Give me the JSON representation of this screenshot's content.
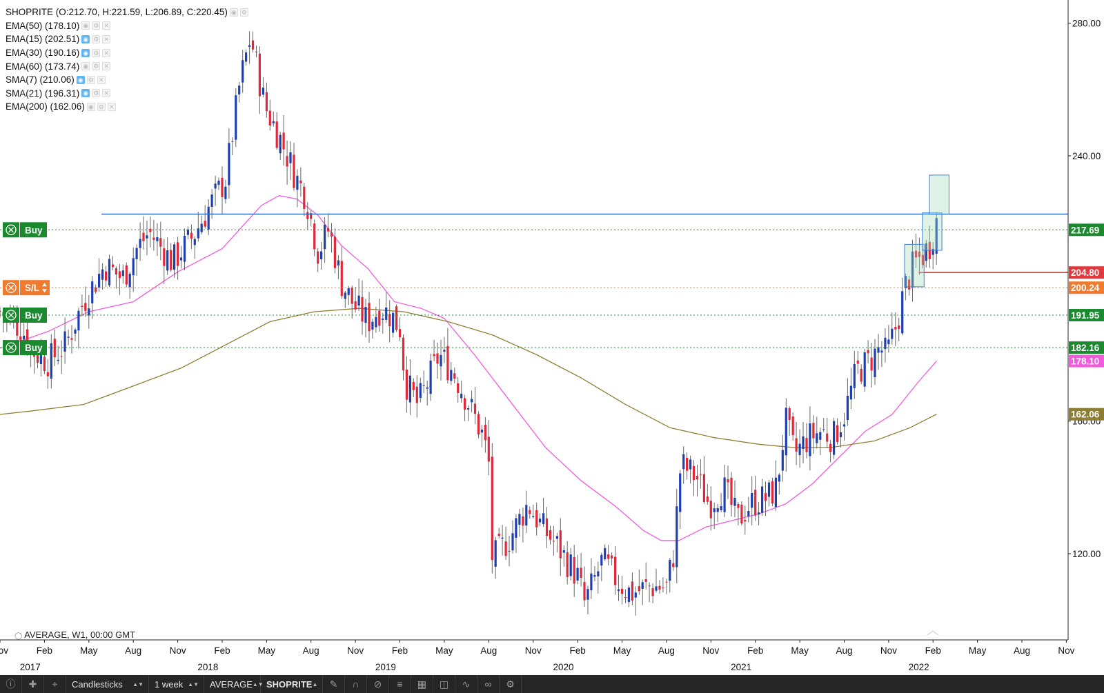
{
  "legend": [
    {
      "text": "SHOPRITE (O:212.70, H:221.59, L:206.89, C:220.45)",
      "active": false,
      "buttons": 2
    },
    {
      "text": "EMA(50) (178.10)",
      "active": false,
      "buttons": 3
    },
    {
      "text": "EMA(15) (202.51)",
      "active": true,
      "buttons": 3
    },
    {
      "text": "EMA(30) (190.16)",
      "active": true,
      "buttons": 3
    },
    {
      "text": "EMA(60) (173.74)",
      "active": false,
      "buttons": 3
    },
    {
      "text": "SMA(7) (210.06)",
      "active": true,
      "buttons": 3
    },
    {
      "text": "SMA(21) (196.31)",
      "active": true,
      "buttons": 3
    },
    {
      "text": "EMA(200) (162.06)",
      "active": false,
      "buttons": 3
    }
  ],
  "bottom_note": "AVERAGE, W1, 00:00 GMT",
  "trade_buttons": [
    {
      "label": "Buy",
      "price": 217.69,
      "color": "#1b8a2e"
    },
    {
      "label": "S/L",
      "price": 200.24,
      "color": "#f07b2f"
    },
    {
      "label": "Buy",
      "price": 191.95,
      "color": "#1b8a2e"
    },
    {
      "label": "Buy",
      "price": 182.16,
      "color": "#1b8a2e"
    }
  ],
  "price_tags": [
    {
      "text": "217.69",
      "price": 217.69,
      "bg": "#1b8a2e"
    },
    {
      "text": "204.80",
      "price": 204.8,
      "bg": "#e0393e"
    },
    {
      "text": "200.24",
      "price": 200.24,
      "bg": "#f07b2f"
    },
    {
      "text": "191.95",
      "price": 191.95,
      "bg": "#1b8a2e"
    },
    {
      "text": "182.16",
      "price": 182.16,
      "bg": "#1b8a2e"
    },
    {
      "text": "178.10",
      "price": 178.1,
      "bg": "#f25bdc"
    },
    {
      "text": "162.06",
      "price": 162.06,
      "bg": "#8e7e34"
    }
  ],
  "horizontal_lines": [
    {
      "price": 222.43,
      "color": "#2d6fd6",
      "style": "solid"
    },
    {
      "price": 217.69,
      "color": "#1b8a2e",
      "style": "dotted"
    },
    {
      "price": 200.24,
      "color": "#f07b2f",
      "style": "dotted"
    },
    {
      "price": 191.95,
      "color": "#1b8a2e",
      "style": "dotted"
    },
    {
      "price": 182.16,
      "color": "#1b8a2e",
      "style": "dotted"
    },
    {
      "price": 204.8,
      "color": "#e0393e",
      "style": "solid",
      "from_time": 2022.0
    }
  ],
  "chart_data": {
    "type": "candlestick",
    "title": "SHOPRITE",
    "timeframe": "1 week",
    "ylim": [
      94,
      287
    ],
    "xlim": [
      2016.83,
      2022.84
    ],
    "y_ticks": [
      120,
      160,
      240,
      280
    ],
    "y_tick_labels": [
      "120.00",
      "160.00",
      "240.00",
      "280.00"
    ],
    "month_ticks": [
      {
        "t": 2016.83,
        "label": "Nov"
      },
      {
        "t": 2017.08,
        "label": "Feb"
      },
      {
        "t": 2017.33,
        "label": "May"
      },
      {
        "t": 2017.58,
        "label": "Aug"
      },
      {
        "t": 2017.83,
        "label": "Nov"
      },
      {
        "t": 2018.08,
        "label": "Feb"
      },
      {
        "t": 2018.33,
        "label": "May"
      },
      {
        "t": 2018.58,
        "label": "Aug"
      },
      {
        "t": 2018.83,
        "label": "Nov"
      },
      {
        "t": 2019.08,
        "label": "Feb"
      },
      {
        "t": 2019.33,
        "label": "May"
      },
      {
        "t": 2019.58,
        "label": "Aug"
      },
      {
        "t": 2019.83,
        "label": "Nov"
      },
      {
        "t": 2020.08,
        "label": "Feb"
      },
      {
        "t": 2020.33,
        "label": "May"
      },
      {
        "t": 2020.58,
        "label": "Aug"
      },
      {
        "t": 2020.83,
        "label": "Nov"
      },
      {
        "t": 2021.08,
        "label": "Feb"
      },
      {
        "t": 2021.33,
        "label": "May"
      },
      {
        "t": 2021.58,
        "label": "Aug"
      },
      {
        "t": 2021.83,
        "label": "Nov"
      },
      {
        "t": 2022.08,
        "label": "Feb"
      },
      {
        "t": 2022.33,
        "label": "May"
      },
      {
        "t": 2022.58,
        "label": "Aug"
      },
      {
        "t": 2022.83,
        "label": "Nov"
      }
    ],
    "year_ticks": [
      {
        "t": 2017.0,
        "label": "2017"
      },
      {
        "t": 2018.0,
        "label": "2018"
      },
      {
        "t": 2019.0,
        "label": "2019"
      },
      {
        "t": 2020.0,
        "label": "2020"
      },
      {
        "t": 2021.0,
        "label": "2021"
      },
      {
        "t": 2022.0,
        "label": "2022"
      }
    ],
    "close_anchors": [
      [
        2016.83,
        193
      ],
      [
        2016.95,
        188
      ],
      [
        2017.02,
        181
      ],
      [
        2017.1,
        178
      ],
      [
        2017.2,
        183
      ],
      [
        2017.3,
        196
      ],
      [
        2017.42,
        207
      ],
      [
        2017.52,
        203
      ],
      [
        2017.6,
        212
      ],
      [
        2017.67,
        217
      ],
      [
        2017.8,
        208
      ],
      [
        2017.92,
        216
      ],
      [
        2018.0,
        224
      ],
      [
        2018.1,
        233
      ],
      [
        2018.18,
        262
      ],
      [
        2018.24,
        276
      ],
      [
        2018.32,
        255
      ],
      [
        2018.4,
        246
      ],
      [
        2018.5,
        233
      ],
      [
        2018.55,
        228
      ],
      [
        2018.62,
        211
      ],
      [
        2018.68,
        218
      ],
      [
        2018.75,
        202
      ],
      [
        2018.82,
        195
      ],
      [
        2018.9,
        190
      ],
      [
        2018.97,
        194
      ],
      [
        2019.03,
        192
      ],
      [
        2019.08,
        188
      ],
      [
        2019.11,
        172
      ],
      [
        2019.18,
        165
      ],
      [
        2019.24,
        172
      ],
      [
        2019.3,
        180
      ],
      [
        2019.38,
        175
      ],
      [
        2019.47,
        165
      ],
      [
        2019.55,
        155
      ],
      [
        2019.58,
        147
      ],
      [
        2019.6,
        118
      ],
      [
        2019.7,
        125
      ],
      [
        2019.8,
        135
      ],
      [
        2019.88,
        128
      ],
      [
        2019.97,
        122
      ],
      [
        2020.08,
        113
      ],
      [
        2020.12,
        105
      ],
      [
        2020.22,
        118
      ],
      [
        2020.3,
        112
      ],
      [
        2020.38,
        108
      ],
      [
        2020.48,
        110
      ],
      [
        2020.55,
        110
      ],
      [
        2020.58,
        110
      ],
      [
        2020.62,
        120
      ],
      [
        2020.66,
        147
      ],
      [
        2020.75,
        143
      ],
      [
        2020.82,
        135
      ],
      [
        2020.9,
        140
      ],
      [
        2020.98,
        130
      ],
      [
        2021.05,
        135
      ],
      [
        2021.15,
        137
      ],
      [
        2021.2,
        140
      ],
      [
        2021.25,
        160
      ],
      [
        2021.3,
        150
      ],
      [
        2021.38,
        155
      ],
      [
        2021.45,
        157
      ],
      [
        2021.52,
        155
      ],
      [
        2021.58,
        162
      ],
      [
        2021.65,
        175
      ],
      [
        2021.72,
        178
      ],
      [
        2021.78,
        182
      ],
      [
        2021.82,
        180
      ],
      [
        2021.88,
        190
      ],
      [
        2021.92,
        200
      ],
      [
        2021.97,
        207
      ],
      [
        2022.02,
        210
      ],
      [
        2022.06,
        213
      ],
      [
        2022.1,
        220.45
      ]
    ],
    "series": [
      {
        "name": "EMA(50)",
        "color": "#f25bdc",
        "last": 178.1,
        "points": [
          [
            2016.83,
            182
          ],
          [
            2017.1,
            187
          ],
          [
            2017.33,
            193
          ],
          [
            2017.58,
            196
          ],
          [
            2017.83,
            205
          ],
          [
            2018.08,
            212
          ],
          [
            2018.3,
            225
          ],
          [
            2018.4,
            228
          ],
          [
            2018.5,
            227
          ],
          [
            2018.62,
            222
          ],
          [
            2018.75,
            213
          ],
          [
            2018.9,
            206
          ],
          [
            2019.05,
            196
          ],
          [
            2019.2,
            194
          ],
          [
            2019.33,
            191
          ],
          [
            2019.5,
            180
          ],
          [
            2019.7,
            166
          ],
          [
            2019.9,
            152
          ],
          [
            2020.1,
            142
          ],
          [
            2020.3,
            134
          ],
          [
            2020.45,
            127
          ],
          [
            2020.55,
            124
          ],
          [
            2020.65,
            124
          ],
          [
            2020.8,
            128
          ],
          [
            2020.95,
            130
          ],
          [
            2021.1,
            132
          ],
          [
            2021.25,
            135
          ],
          [
            2021.4,
            141
          ],
          [
            2021.55,
            149
          ],
          [
            2021.7,
            157
          ],
          [
            2021.85,
            162
          ],
          [
            2022.0,
            172
          ],
          [
            2022.1,
            178.1
          ]
        ]
      },
      {
        "name": "EMA(200)",
        "color": "#8e7e34",
        "last": 162.06,
        "points": [
          [
            2016.83,
            162
          ],
          [
            2017.0,
            163
          ],
          [
            2017.3,
            165
          ],
          [
            2017.55,
            170
          ],
          [
            2017.85,
            176
          ],
          [
            2018.1,
            183
          ],
          [
            2018.35,
            190
          ],
          [
            2018.6,
            193
          ],
          [
            2018.85,
            194
          ],
          [
            2019.1,
            193
          ],
          [
            2019.35,
            190
          ],
          [
            2019.6,
            186
          ],
          [
            2019.85,
            180
          ],
          [
            2020.1,
            173
          ],
          [
            2020.35,
            165
          ],
          [
            2020.6,
            158
          ],
          [
            2020.85,
            155
          ],
          [
            2021.1,
            153
          ],
          [
            2021.3,
            152
          ],
          [
            2021.5,
            152
          ],
          [
            2021.75,
            154
          ],
          [
            2021.95,
            158
          ],
          [
            2022.1,
            162.06
          ]
        ]
      }
    ],
    "annotations": [
      {
        "type": "rectangle",
        "label": "range box 1",
        "t0": 2021.92,
        "t1": 2022.03,
        "p0": 200.5,
        "p1": 213.3,
        "fill": "rgba(160,220,180,0.35)",
        "stroke": "#3b7fe0"
      },
      {
        "type": "rectangle",
        "label": "range box 2",
        "t0": 2022.02,
        "t1": 2022.13,
        "p0": 211.5,
        "p1": 222.8,
        "fill": "rgba(160,220,180,0.35)",
        "stroke": "#3b7fe0"
      },
      {
        "type": "rectangle",
        "label": "range box 3",
        "t0": 2022.06,
        "t1": 2022.17,
        "p0": 222.4,
        "p1": 234.2,
        "fill": "rgba(160,220,180,0.35)",
        "stroke": "#3b7fe0"
      }
    ],
    "grid": false
  },
  "toolbar": {
    "chart_type": "Candlesticks",
    "timeframe": "1 week",
    "account": "AVERAGE",
    "symbol": "SHOPRITE"
  }
}
